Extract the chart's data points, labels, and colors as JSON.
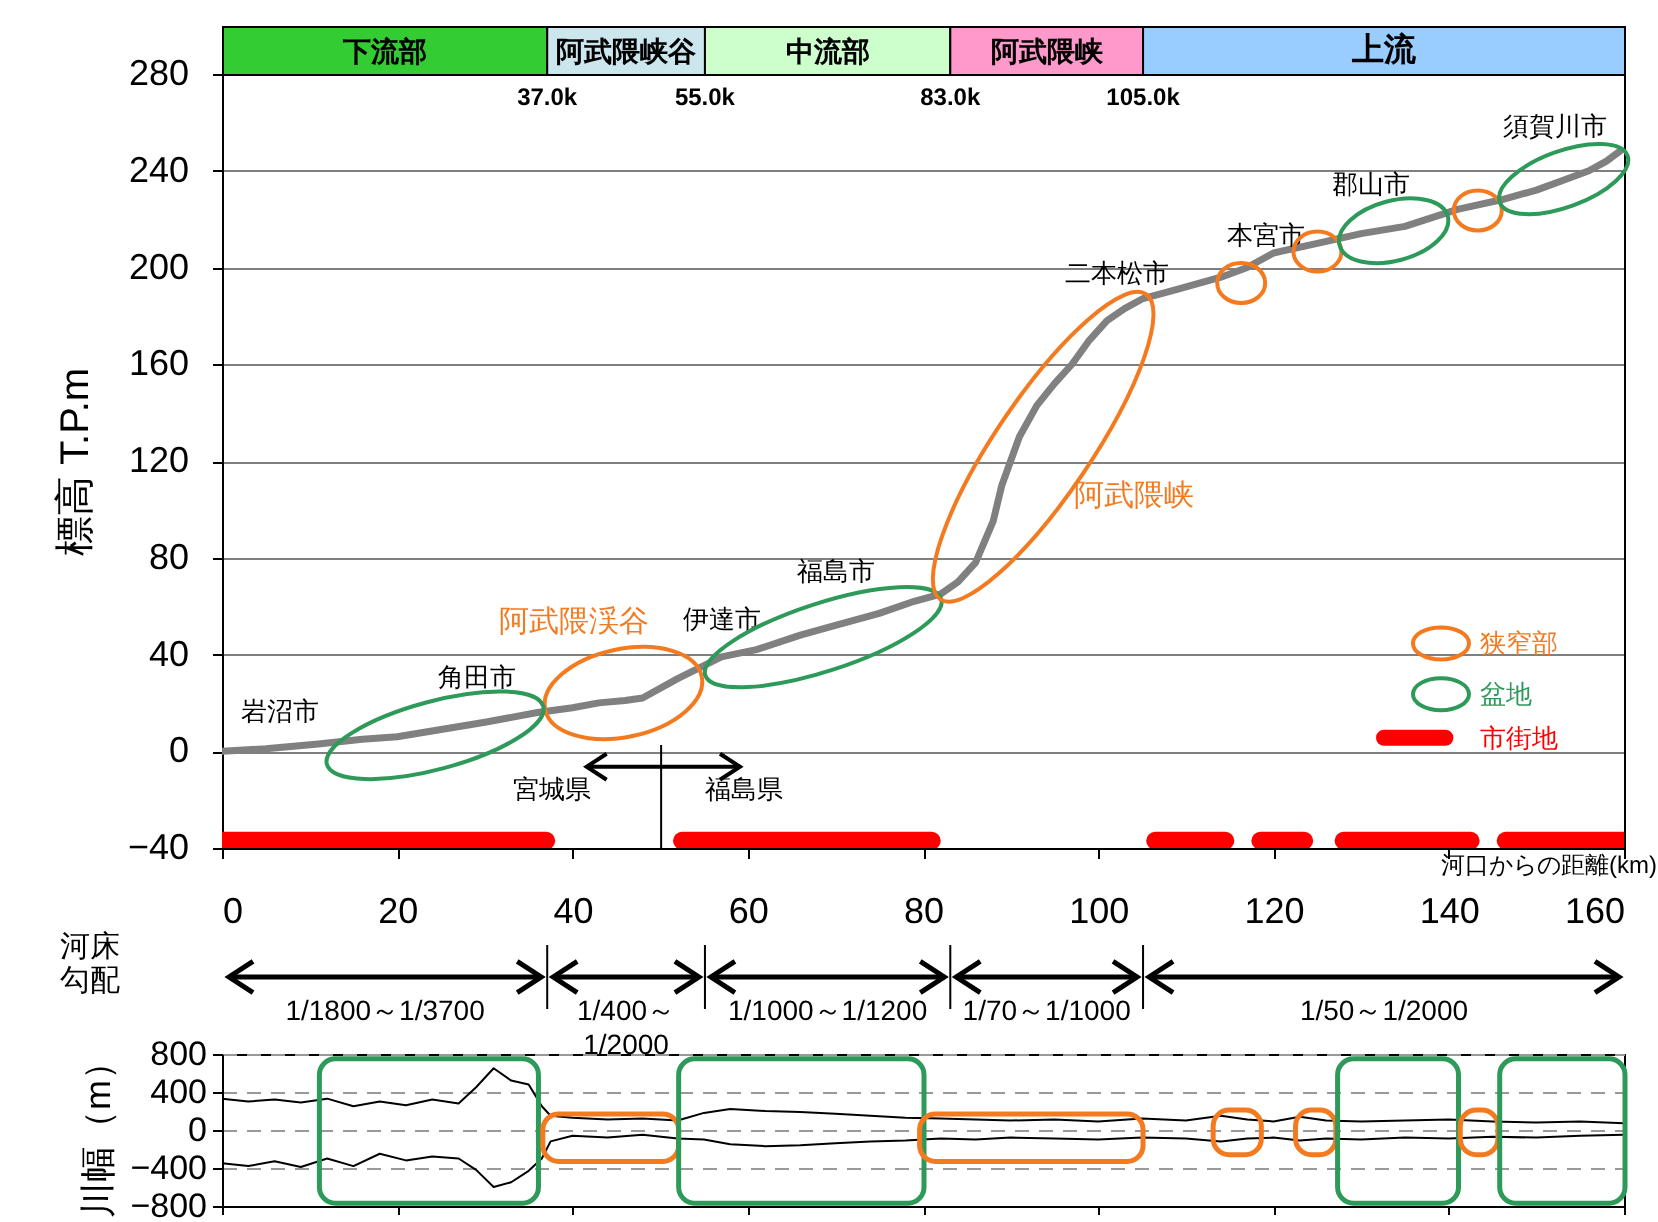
{
  "chart_data": [
    {
      "type": "line",
      "ylabel": "標高 T.P.m",
      "xlabel": "河口からの距離(km)",
      "x": [
        0,
        5,
        11,
        16,
        20,
        25,
        30,
        36,
        40,
        43,
        46,
        48,
        52,
        57,
        61,
        66,
        70,
        75,
        79,
        82,
        84,
        86,
        88,
        89,
        91,
        93,
        95,
        97,
        99,
        101,
        103,
        105,
        109,
        114,
        117,
        120,
        125,
        130,
        135,
        141,
        146,
        150,
        153,
        156,
        158,
        159.5
      ],
      "series": [
        {
          "color": "#808080",
          "values": [
            0,
            1,
            3,
            5,
            6,
            9,
            12,
            16,
            18,
            20,
            21,
            22,
            30,
            39,
            42,
            48,
            52,
            57,
            62,
            65,
            70,
            78,
            95,
            110,
            130,
            143,
            152,
            160,
            170,
            178,
            183,
            187,
            191,
            196,
            200,
            206,
            210,
            214,
            217,
            224,
            228,
            232,
            236,
            240,
            244,
            248
          ]
        },
        {
          "color": "#ff0000",
          "x": [
            0,
            37
          ],
          "values": [
            -37,
            -37
          ]
        },
        {
          "color": "#ff0000",
          "x": [
            52.5,
            81
          ],
          "values": [
            -37,
            -37
          ]
        },
        {
          "color": "#ff0000",
          "x": [
            106.5,
            114.5
          ],
          "values": [
            -37,
            -37
          ]
        },
        {
          "color": "#ff0000",
          "x": [
            118.5,
            123.5
          ],
          "values": [
            -37,
            -37
          ]
        },
        {
          "color": "#ff0000",
          "x": [
            128,
            142.5
          ],
          "values": [
            -37,
            -37
          ]
        },
        {
          "color": "#ff0000",
          "x": [
            146.5,
            160
          ],
          "values": [
            -37,
            -37
          ]
        }
      ],
      "xlim": [
        0,
        160
      ],
      "xticks": [
        0,
        20,
        40,
        60,
        80,
        100,
        120,
        140,
        160
      ],
      "ylim": [
        -40,
        280
      ],
      "yticks": [
        -40,
        0,
        40,
        80,
        120,
        160,
        200,
        240,
        280
      ],
      "grid": "y",
      "annotations": [
        "下流部",
        "阿武隈峡谷",
        "中流部",
        "阿武隈峡",
        "上流",
        "37.0k",
        "55.0k",
        "83.0k",
        "105.0k",
        "岩沼市",
        "角田市",
        "伊達市",
        "福島市",
        "二本松市",
        "本宮市",
        "郡山市",
        "須賀川市",
        "阿武隈渓谷",
        "阿武隈峡",
        "宮城県",
        "福島県",
        "河床勾配",
        "1/1800～1/3700",
        "1/400～1/2000",
        "1/1000～1/1200",
        "1/70～1/1000",
        "1/50～1/2000",
        "狭窄部",
        "盆地",
        "市街地"
      ]
    },
    {
      "type": "line",
      "ylabel": "川幅（m）",
      "x": [
        0,
        3,
        6,
        9,
        12,
        15,
        18,
        21,
        24,
        27,
        29,
        31,
        33,
        35,
        36.5,
        37.5,
        40,
        44,
        48,
        52,
        55,
        58,
        62,
        66,
        70,
        74,
        78,
        82,
        86,
        90,
        95,
        100,
        105,
        110,
        114,
        117,
        120,
        123,
        126,
        130,
        135,
        140,
        145,
        150,
        155,
        160
      ],
      "series": [
        {
          "color": "#000000",
          "values": [
            330,
            300,
            320,
            290,
            330,
            250,
            300,
            260,
            320,
            280,
            450,
            650,
            520,
            480,
            250,
            150,
            130,
            110,
            120,
            100,
            180,
            220,
            200,
            190,
            170,
            150,
            130,
            120,
            110,
            100,
            110,
            90,
            120,
            100,
            150,
            110,
            90,
            140,
            100,
            90,
            100,
            110,
            90,
            80,
            90,
            70
          ]
        },
        {
          "color": "#000000",
          "values": [
            -350,
            -380,
            -330,
            -390,
            -300,
            -380,
            -250,
            -320,
            -280,
            -300,
            -420,
            -600,
            -550,
            -430,
            -300,
            -120,
            -60,
            -80,
            -50,
            -90,
            -100,
            -150,
            -170,
            -160,
            -140,
            -120,
            -110,
            -90,
            -100,
            -80,
            -90,
            -100,
            -80,
            -90,
            -120,
            -90,
            -80,
            -110,
            -90,
            -100,
            -80,
            -90,
            -70,
            -80,
            -60,
            -50
          ]
        }
      ],
      "xlim": [
        0,
        160
      ],
      "xticks": [
        0,
        20,
        40,
        60,
        80,
        100,
        120,
        140,
        160
      ],
      "ylim": [
        -800,
        800
      ],
      "yticks": [
        -800,
        -400,
        0,
        400,
        800
      ],
      "grid": "y",
      "tick_labels": "y"
    }
  ]
}
